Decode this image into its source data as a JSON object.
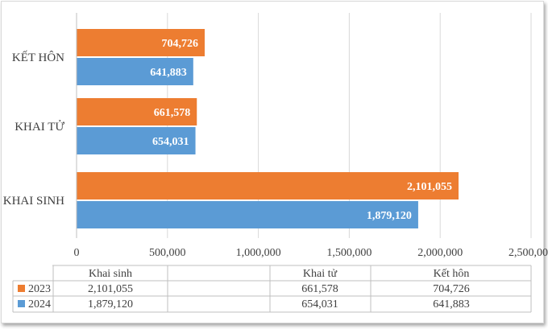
{
  "chart_data": {
    "type": "bar",
    "orientation": "horizontal",
    "categories": [
      "KẾT HÔN",
      "KHAI TỬ",
      "KHAI SINH"
    ],
    "series": [
      {
        "name": "2023",
        "color": "#ED7D31",
        "values": [
          704726,
          661578,
          2101055
        ],
        "labels": [
          "704,726",
          "661,578",
          "2,101,055"
        ]
      },
      {
        "name": "2024",
        "color": "#5B9BD5",
        "values": [
          641883,
          654031,
          1879120
        ],
        "labels": [
          "641,883",
          "654,031",
          "1,879,120"
        ]
      }
    ],
    "xlim": [
      0,
      2500000
    ],
    "x_ticks": [
      0,
      500000,
      1000000,
      1500000,
      2000000,
      2500000
    ],
    "x_tick_labels": [
      "0",
      "500,000",
      "1,000,000",
      "1,500,000",
      "2,000,000",
      "2,500,000"
    ],
    "grid": true,
    "data_table": {
      "columns": [
        "Khai sinh",
        "Khai tử",
        "Kết hôn"
      ],
      "rows": [
        {
          "series": "2023",
          "color": "#ED7D31",
          "values": [
            "2,101,055",
            "661,578",
            "704,726"
          ]
        },
        {
          "series": "2024",
          "color": "#5B9BD5",
          "values": [
            "1,879,120",
            "654,031",
            "641,883"
          ]
        }
      ]
    }
  }
}
